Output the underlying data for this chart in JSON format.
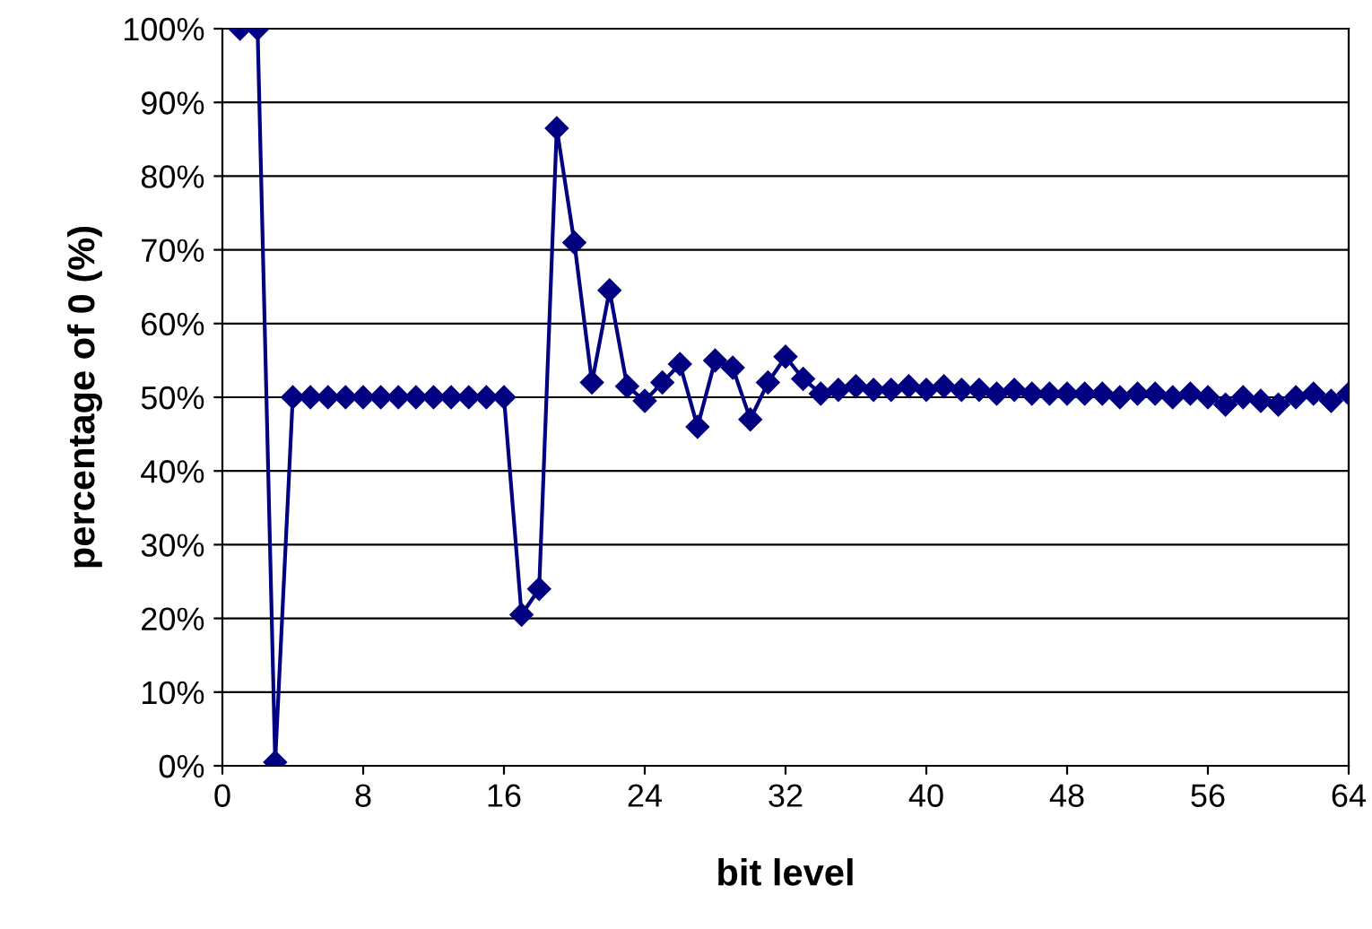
{
  "chart_data": {
    "type": "line",
    "xlabel": "bit level",
    "ylabel": "percentage of 0 (%)",
    "x": [
      1,
      2,
      3,
      4,
      5,
      6,
      7,
      8,
      9,
      10,
      11,
      12,
      13,
      14,
      15,
      16,
      17,
      18,
      19,
      20,
      21,
      22,
      23,
      24,
      25,
      26,
      27,
      28,
      29,
      30,
      31,
      32,
      33,
      34,
      35,
      36,
      37,
      38,
      39,
      40,
      41,
      42,
      43,
      44,
      45,
      46,
      47,
      48,
      49,
      50,
      51,
      52,
      53,
      54,
      55,
      56,
      57,
      58,
      59,
      60,
      61,
      62,
      63,
      64
    ],
    "series": [
      {
        "color": "#000080",
        "values": [
          100,
          100,
          0.5,
          50,
          50,
          50,
          50,
          50,
          50,
          50,
          50,
          50,
          50,
          50,
          50,
          50,
          20.5,
          24,
          86.5,
          71,
          52,
          64.5,
          51.5,
          49.5,
          52,
          54.5,
          46,
          55,
          54,
          47,
          52,
          55.5,
          52.5,
          50.5,
          51,
          51.5,
          51,
          51,
          51.5,
          51,
          51.5,
          51,
          51,
          50.5,
          51,
          50.5,
          50.5,
          50.5,
          50.5,
          50.5,
          50,
          50.5,
          50.5,
          50,
          50.5,
          50,
          49,
          50,
          49.5,
          49,
          50,
          50.5,
          49.5,
          50.5
        ]
      }
    ],
    "xlim": [
      0,
      64
    ],
    "xticks": [
      0,
      8,
      16,
      24,
      32,
      40,
      48,
      56,
      64
    ],
    "ylim": [
      0,
      100
    ],
    "yticks": [
      {
        "value": 0,
        "label": "0%"
      },
      {
        "value": 10,
        "label": "10%"
      },
      {
        "value": 20,
        "label": "20%"
      },
      {
        "value": 30,
        "label": "30%"
      },
      {
        "value": 40,
        "label": "40%"
      },
      {
        "value": 50,
        "label": "50%"
      },
      {
        "value": 60,
        "label": "60%"
      },
      {
        "value": 70,
        "label": "70%"
      },
      {
        "value": 80,
        "label": "80%"
      },
      {
        "value": 90,
        "label": "90%"
      },
      {
        "value": 100,
        "label": "100%"
      }
    ],
    "grid": "y",
    "marker": "diamond",
    "line_style": "solid"
  }
}
